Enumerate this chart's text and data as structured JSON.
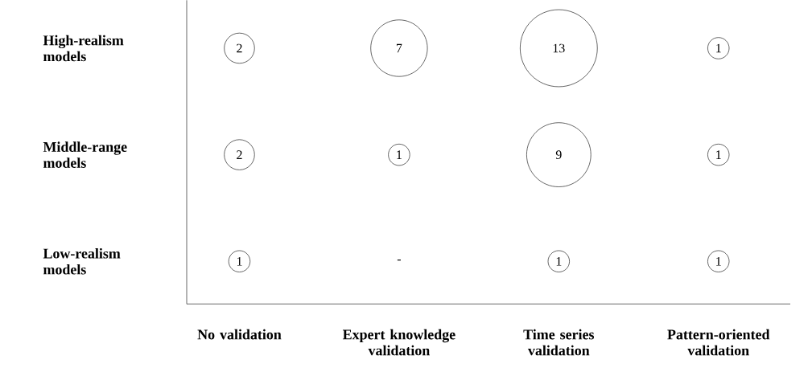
{
  "chart_data": {
    "type": "heatmap",
    "categories": [
      "No validation",
      "Expert knowledge validation",
      "Time series validation",
      "Pattern-oriented validation"
    ],
    "y_categories": [
      "High-realism models",
      "Middle-range models",
      "Low-realism models"
    ],
    "cells": [
      [
        2,
        7,
        13,
        1
      ],
      [
        2,
        1,
        9,
        1
      ],
      [
        1,
        null,
        1,
        1
      ]
    ],
    "cell_labels": [
      [
        "2",
        "7",
        "13",
        "1"
      ],
      [
        "2",
        "1",
        "9",
        "1"
      ],
      [
        "1",
        "-",
        "1",
        "1"
      ]
    ],
    "data_labels": true
  }
}
